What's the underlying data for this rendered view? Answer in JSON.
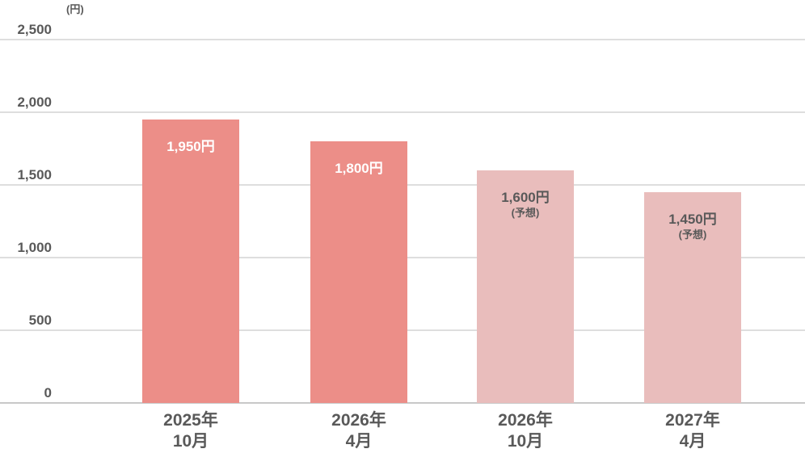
{
  "chart_data": {
    "type": "bar",
    "y_unit": "(円)",
    "ylim": [
      0,
      2500
    ],
    "yticks": [
      0,
      500,
      1000,
      1500,
      2000,
      2500
    ],
    "ytick_labels": [
      "0",
      "500",
      "1,000",
      "1,500",
      "2,000",
      "2,500"
    ],
    "grid": true,
    "categories": [
      [
        "2025年",
        "10月"
      ],
      [
        "2026年",
        "4月"
      ],
      [
        "2026年",
        "10月"
      ],
      [
        "2027年",
        "4月"
      ]
    ],
    "values": [
      1950,
      1800,
      1600,
      1450
    ],
    "data_labels": [
      "1,950円",
      "1,800円",
      "1,600円",
      "1,450円"
    ],
    "data_notes": [
      "",
      "",
      "(予想)",
      "(予想)"
    ],
    "bar_colors": [
      "#ec8e88",
      "#ec8e88",
      "#e9bdbc",
      "#e9bdbc"
    ],
    "label_colors": [
      "#ffffff",
      "#ffffff",
      "#595959",
      "#595959"
    ]
  }
}
